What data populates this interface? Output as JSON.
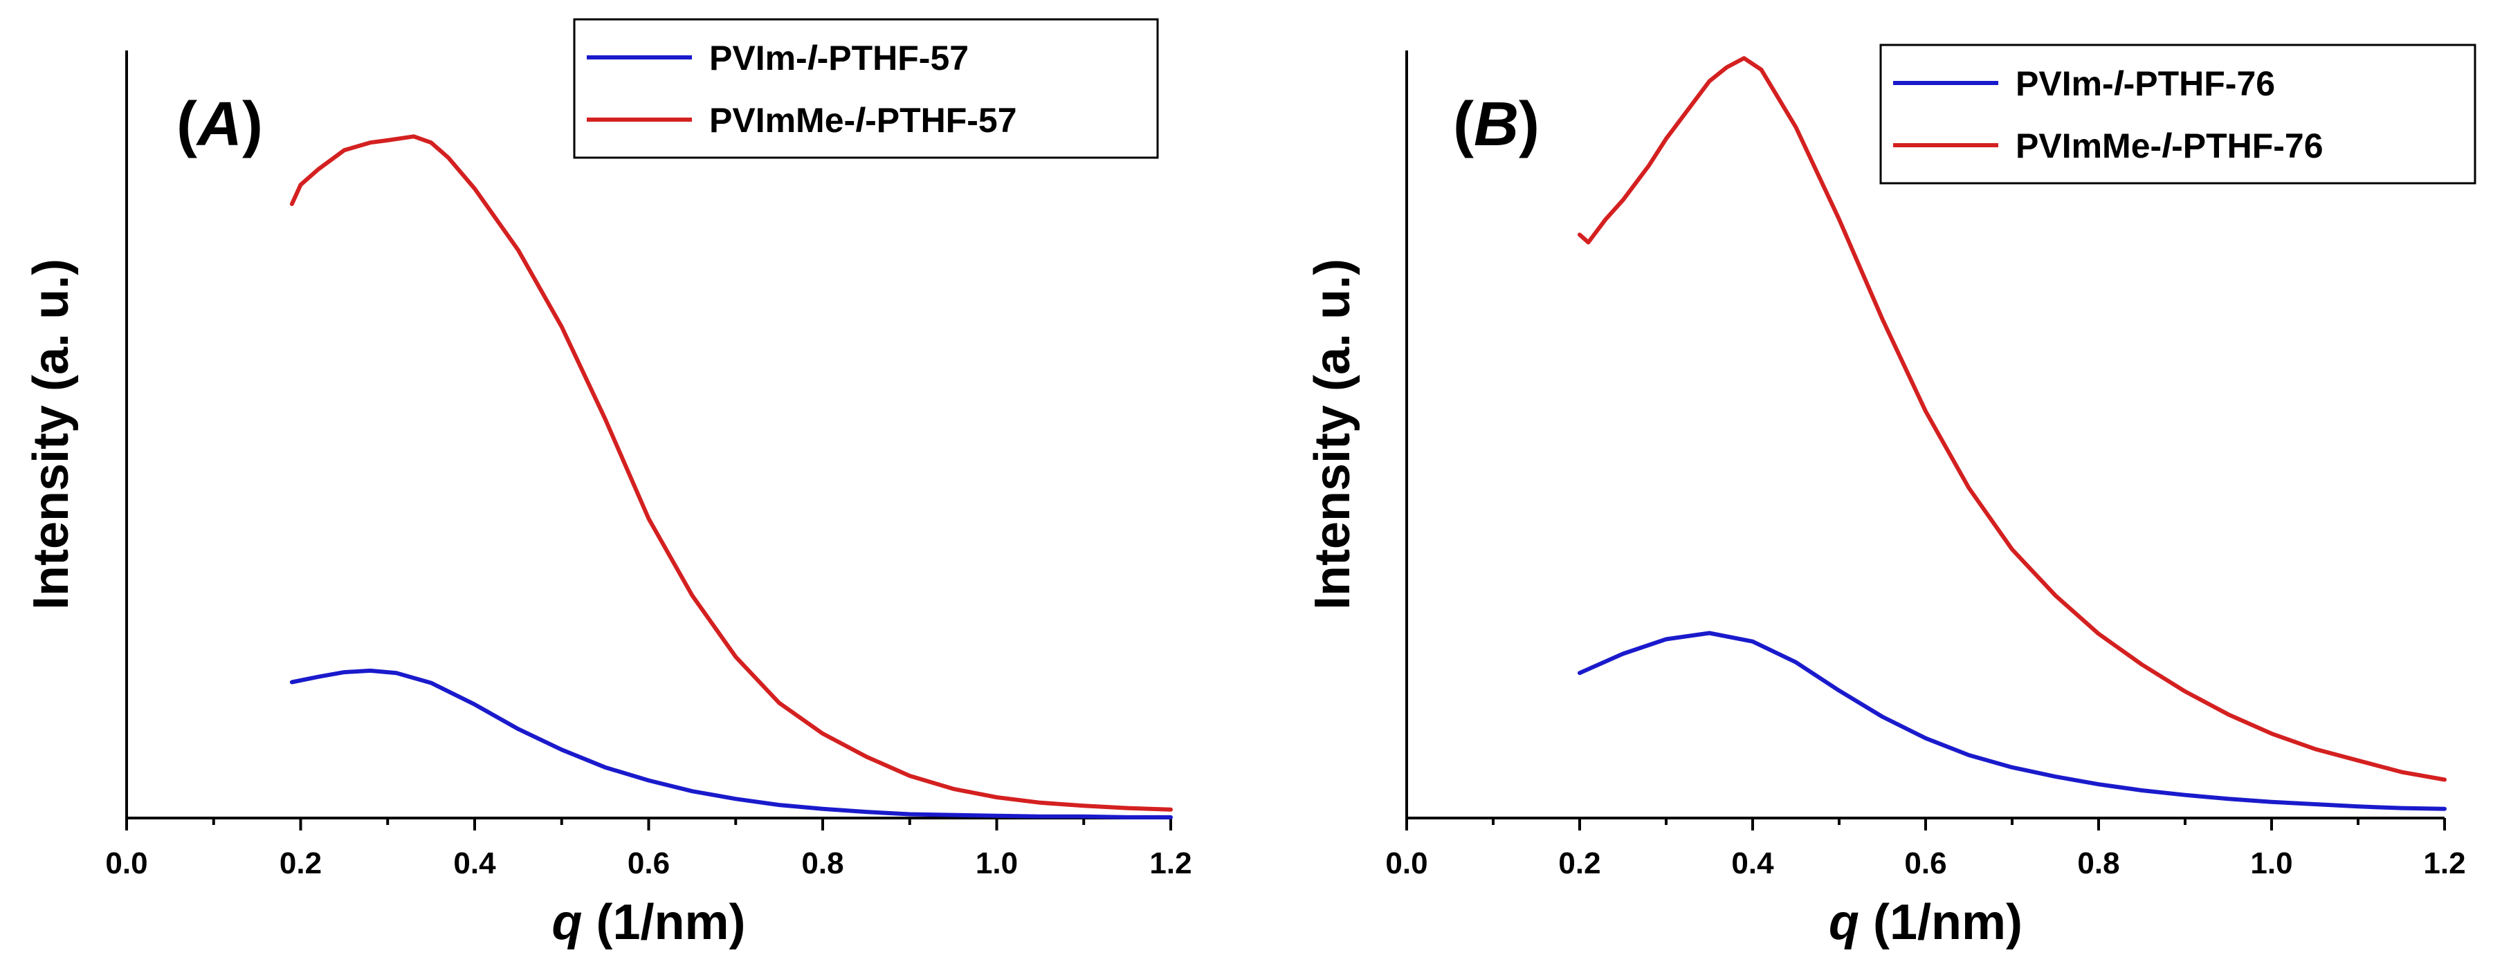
{
  "chart_data": [
    {
      "type": "line",
      "panel_label": "A",
      "xlabel": "(1/nm)",
      "xlabel_symbol": "q",
      "ylabel": "Intensity (a. u.)",
      "xlim": [
        0.0,
        1.2
      ],
      "ylim": [
        0,
        100
      ],
      "x_ticks": [
        "0.0",
        "0.2",
        "0.4",
        "0.6",
        "0.8",
        "1.0",
        "1.2"
      ],
      "y_ticks_labeled": false,
      "legend_position": "top-right",
      "series": [
        {
          "name_parts": [
            "PVIm-",
            "l",
            "-PTHF-57"
          ],
          "color": "#1a1acc",
          "x": [
            0.19,
            0.22,
            0.25,
            0.28,
            0.31,
            0.35,
            0.4,
            0.45,
            0.5,
            0.55,
            0.6,
            0.65,
            0.7,
            0.75,
            0.8,
            0.85,
            0.9,
            0.95,
            1.0,
            1.05,
            1.1,
            1.15,
            1.2
          ],
          "y": [
            17.7,
            18.4,
            19.0,
            19.2,
            18.9,
            17.6,
            14.8,
            11.6,
            8.9,
            6.6,
            4.9,
            3.5,
            2.5,
            1.7,
            1.2,
            0.8,
            0.5,
            0.4,
            0.3,
            0.2,
            0.2,
            0.1,
            0.1
          ]
        },
        {
          "name_parts": [
            "PVImMe-",
            "l",
            "-PTHF-57"
          ],
          "color": "#d42020",
          "x": [
            0.19,
            0.2,
            0.22,
            0.25,
            0.28,
            0.3,
            0.33,
            0.35,
            0.37,
            0.4,
            0.45,
            0.5,
            0.55,
            0.6,
            0.65,
            0.7,
            0.75,
            0.8,
            0.85,
            0.9,
            0.95,
            1.0,
            1.05,
            1.1,
            1.15,
            1.2
          ],
          "y": [
            80.0,
            82.5,
            84.5,
            87.0,
            88.0,
            88.3,
            88.8,
            88.0,
            86.0,
            82.0,
            74.0,
            64.0,
            52.0,
            39.0,
            29.0,
            21.0,
            15.0,
            11.0,
            8.0,
            5.5,
            3.8,
            2.7,
            2.0,
            1.6,
            1.3,
            1.1
          ]
        }
      ]
    },
    {
      "type": "line",
      "panel_label": "B",
      "xlabel": "(1/nm)",
      "xlabel_symbol": "q",
      "ylabel": "Intensity (a. u.)",
      "xlim": [
        0.0,
        1.2
      ],
      "ylim": [
        0,
        100
      ],
      "x_ticks": [
        "0.0",
        "0.2",
        "0.4",
        "0.6",
        "0.8",
        "1.0",
        "1.2"
      ],
      "y_ticks_labeled": false,
      "legend_position": "top-right",
      "series": [
        {
          "name_parts": [
            "PVIm-",
            "l",
            "-PTHF-76"
          ],
          "color": "#1a1acc",
          "x": [
            0.2,
            0.25,
            0.3,
            0.35,
            0.4,
            0.45,
            0.5,
            0.55,
            0.6,
            0.65,
            0.7,
            0.75,
            0.8,
            0.85,
            0.9,
            0.95,
            1.0,
            1.05,
            1.1,
            1.15,
            1.2
          ],
          "y": [
            18.9,
            21.4,
            23.3,
            24.1,
            23.0,
            20.3,
            16.6,
            13.2,
            10.4,
            8.2,
            6.6,
            5.4,
            4.4,
            3.6,
            3.0,
            2.5,
            2.1,
            1.8,
            1.5,
            1.3,
            1.2
          ]
        },
        {
          "name_parts": [
            "PVImMe-",
            "l",
            "-PTHF-76"
          ],
          "color": "#d42020",
          "x": [
            0.2,
            0.21,
            0.23,
            0.25,
            0.28,
            0.3,
            0.33,
            0.35,
            0.37,
            0.39,
            0.41,
            0.45,
            0.5,
            0.55,
            0.6,
            0.65,
            0.7,
            0.75,
            0.8,
            0.85,
            0.9,
            0.95,
            1.0,
            1.05,
            1.1,
            1.15,
            1.2
          ],
          "y": [
            76.0,
            75.0,
            78.0,
            80.5,
            85.0,
            88.5,
            93.0,
            96.0,
            97.8,
            99.0,
            97.5,
            90.0,
            78.0,
            65.0,
            53.0,
            43.0,
            35.0,
            29.0,
            24.0,
            20.0,
            16.5,
            13.5,
            11.0,
            9.0,
            7.5,
            6.0,
            5.0
          ]
        }
      ]
    }
  ]
}
